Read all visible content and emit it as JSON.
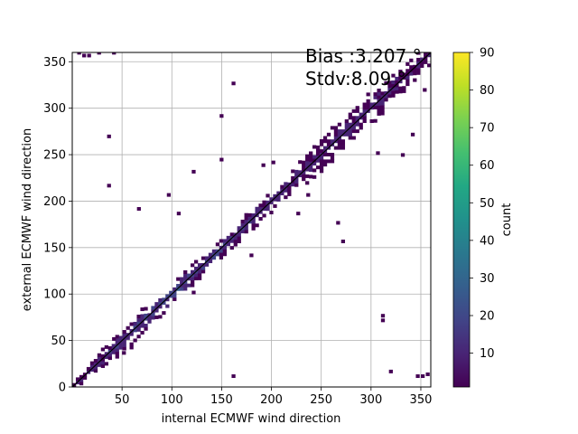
{
  "chart_data": {
    "type": "heatmap",
    "subtype": "2d-histogram",
    "xlabel": "internal ECMWF wind direction",
    "ylabel": "external ECMWF wind direction",
    "xlim": [
      0,
      360
    ],
    "ylim": [
      0,
      360
    ],
    "xticks": [
      50,
      100,
      150,
      200,
      250,
      300,
      350
    ],
    "yticks": [
      0,
      50,
      100,
      150,
      200,
      250,
      300,
      350
    ],
    "grid": true,
    "bin_width_deg": 3.6,
    "annotations": [
      "Bias :3.207 °",
      "Stdv:8.09 °"
    ],
    "identity_line": true,
    "colormap": "viridis",
    "colorbar": {
      "label": "count",
      "min": 1,
      "max": 90,
      "ticks": [
        10,
        20,
        30,
        40,
        50,
        60,
        70,
        80,
        90
      ]
    },
    "diagonal_profile": [
      {
        "x": 0,
        "spread_deg": 3,
        "count": 6
      },
      {
        "x": 50,
        "spread_deg": 18,
        "count": 12
      },
      {
        "x": 90,
        "spread_deg": 12,
        "count": 20
      },
      {
        "x": 150,
        "spread_deg": 10,
        "count": 14
      },
      {
        "x": 200,
        "spread_deg": 12,
        "count": 10
      },
      {
        "x": 250,
        "spread_deg": 18,
        "count": 8
      },
      {
        "x": 300,
        "spread_deg": 18,
        "count": 8
      },
      {
        "x": 355,
        "spread_deg": 12,
        "count": 6
      }
    ],
    "outlier_points": [
      [
        35,
        268
      ],
      [
        35,
        215
      ],
      [
        65,
        190
      ],
      [
        105,
        185
      ],
      [
        160,
        325
      ],
      [
        148,
        243
      ],
      [
        148,
        290
      ],
      [
        190,
        237
      ],
      [
        225,
        185
      ],
      [
        265,
        175
      ],
      [
        270,
        155
      ],
      [
        310,
        70
      ],
      [
        330,
        248
      ],
      [
        340,
        270
      ],
      [
        352,
        318
      ],
      [
        10,
        355
      ],
      [
        5,
        358
      ],
      [
        25,
        358
      ],
      [
        350,
        10
      ],
      [
        355,
        12
      ],
      [
        318,
        15
      ],
      [
        160,
        10
      ],
      [
        50,
        35
      ],
      [
        40,
        50
      ],
      [
        95,
        205
      ],
      [
        120,
        230
      ],
      [
        178,
        140
      ],
      [
        120,
        100
      ],
      [
        235,
        205
      ],
      [
        200,
        240
      ],
      [
        345,
        10
      ],
      [
        305,
        250
      ],
      [
        310,
        75
      ],
      [
        15,
        355
      ],
      [
        40,
        358
      ]
    ]
  }
}
